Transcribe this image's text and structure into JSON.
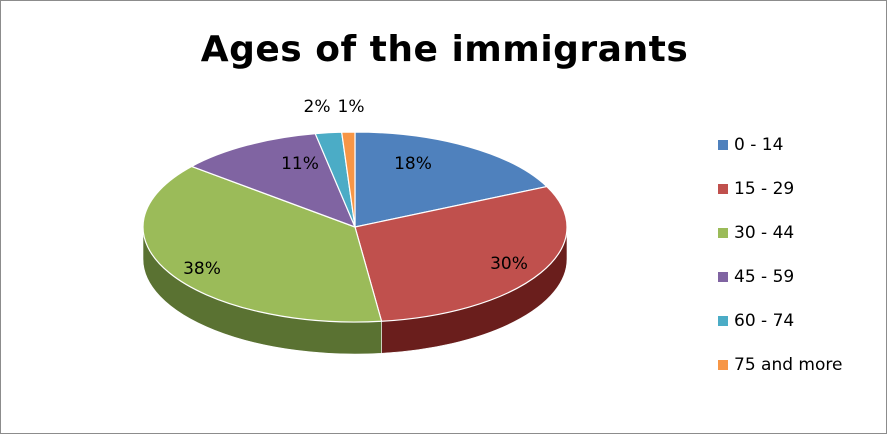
{
  "chart_data": {
    "type": "pie",
    "title": "Ages of the immigrants",
    "categories": [
      "0 - 14",
      "15 - 29",
      "30 - 44",
      "45 - 59",
      "60 - 74",
      "75 and more"
    ],
    "values": [
      18,
      30,
      38,
      11,
      2,
      1
    ],
    "data_labels": [
      "18%",
      "30%",
      "38%",
      "11%",
      "2%",
      "1%"
    ],
    "colors": [
      "#4F81BD",
      "#C0504D",
      "#9BBB59",
      "#8064A2",
      "#4BACC6",
      "#F79646"
    ],
    "side_colors": [
      "#2E4D73",
      "#6A1E1C",
      "#5A7232",
      "#4B3A62",
      "#2B6E7D",
      "#A8601E"
    ],
    "style": "3d-pie",
    "legend_position": "right"
  }
}
